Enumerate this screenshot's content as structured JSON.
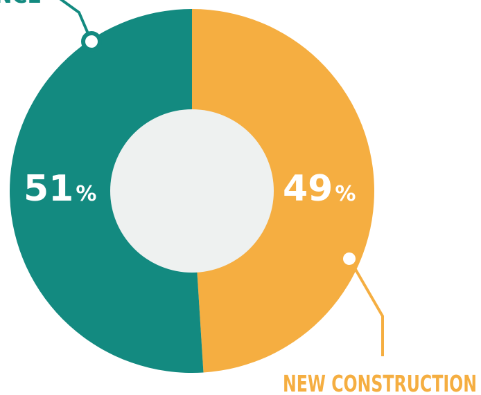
{
  "chart_data": {
    "type": "pie",
    "subtype": "donut",
    "slices": [
      {
        "label": "NCE",
        "value": 51,
        "display": "51",
        "unit": "%",
        "color": "#138a80"
      },
      {
        "label": "NEW CONSTRUCTION",
        "value": 49,
        "display": "49",
        "unit": "%",
        "color": "#f5ae41"
      }
    ],
    "center_color": "#eef1f0",
    "legend": "callouts"
  }
}
